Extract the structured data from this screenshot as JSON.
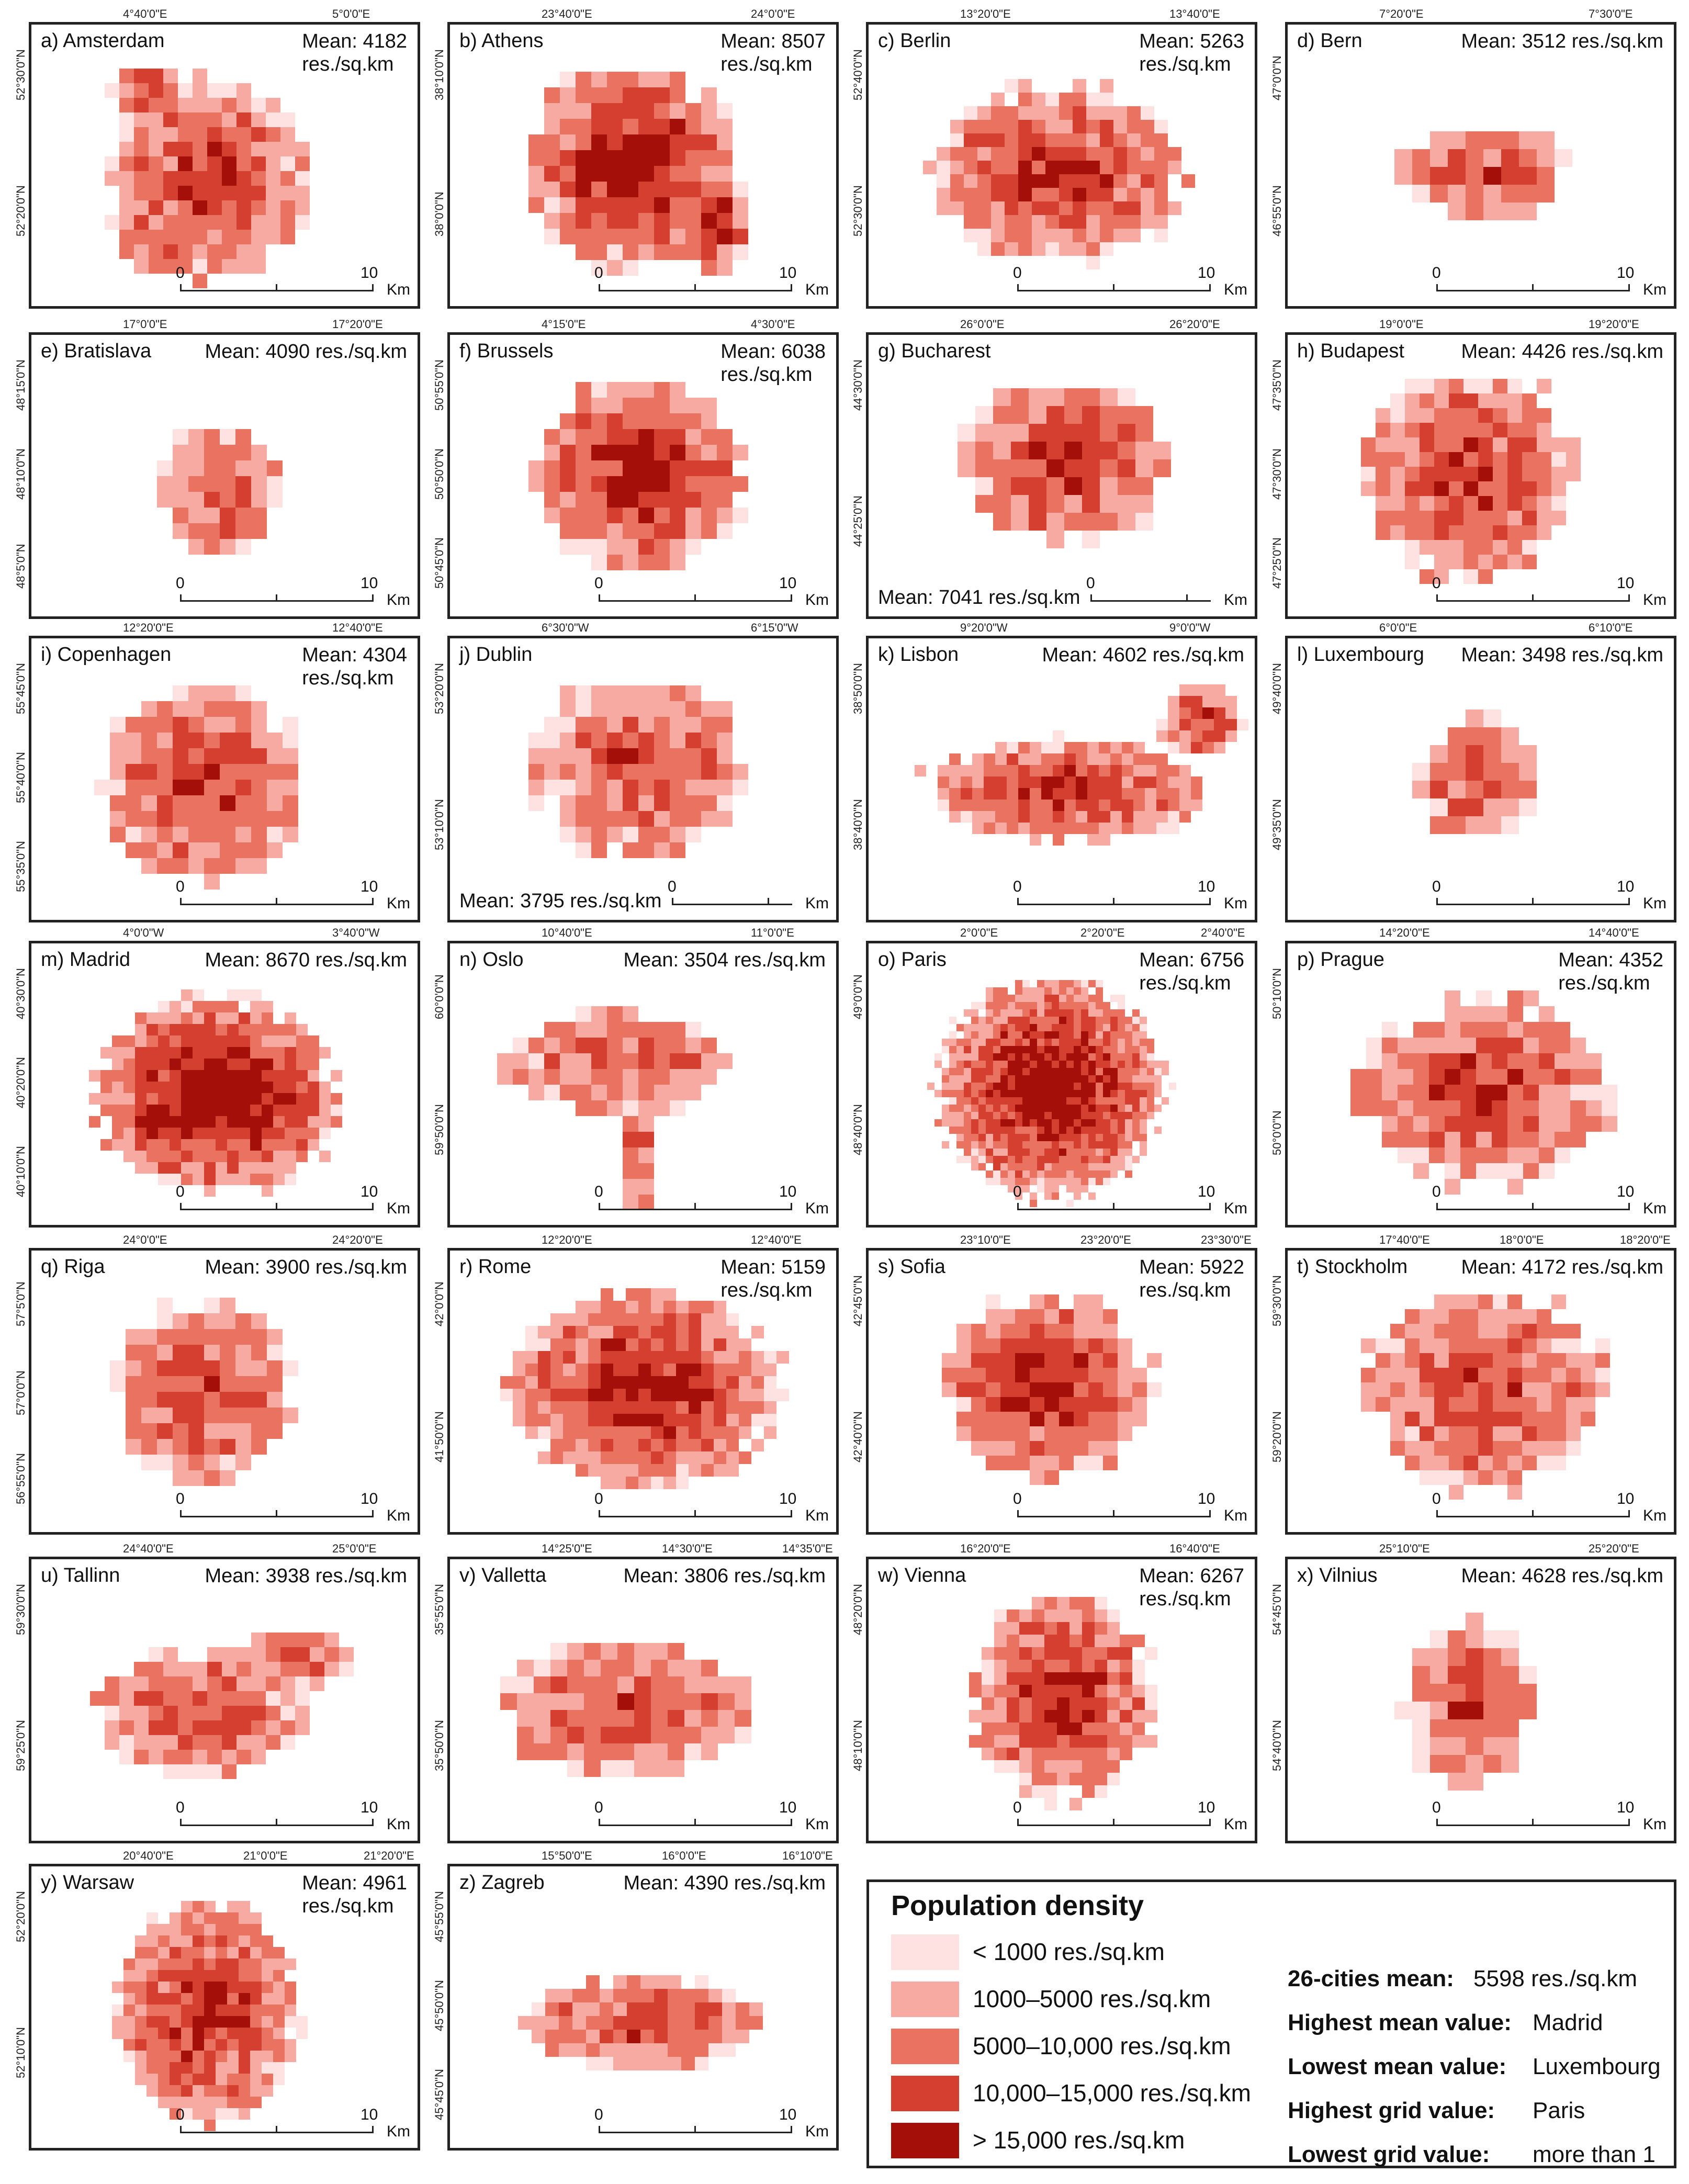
{
  "colors": {
    "c1": "#fde2e1",
    "c2": "#f7aaa2",
    "c3": "#ea7261",
    "c4": "#d43f30",
    "c5": "#a50f0a",
    "frame": "#222222"
  },
  "scale": {
    "zero": "0",
    "ten": "10",
    "unit": "Km"
  },
  "cities": [
    {
      "title": "a) Amsterdam",
      "mean": "Mean: 4182\nres./sq.km",
      "top": [
        "4°40'0\"E",
        "5°0'0\"E"
      ],
      "left": [
        "52°30'0\"N",
        "52°20'0\"N"
      ]
    },
    {
      "title": "b) Athens",
      "mean": "Mean: 8507\nres./sq.km",
      "top": [
        "23°40'0\"E",
        "24°0'0\"E"
      ],
      "left": [
        "38°10'0\"N",
        "38°0'0\"N"
      ]
    },
    {
      "title": "c) Berlin",
      "mean": "Mean: 5263\nres./sq.km",
      "top": [
        "13°20'0\"E",
        "13°40'0\"E"
      ],
      "left": [
        "52°40'0\"N",
        "52°30'0\"N"
      ]
    },
    {
      "title": "d) Bern",
      "mean": "Mean: 3512 res./sq.km",
      "top": [
        "7°20'0\"E",
        "7°30'0\"E"
      ],
      "left": [
        "47°0'0\"N",
        "46°55'0\"N"
      ]
    },
    {
      "title": "e) Bratislava",
      "mean": "Mean: 4090 res./sq.km",
      "top": [
        "17°0'0\"E",
        "17°20'0\"E"
      ],
      "left": [
        "48°15'0\"N",
        "48°10'0\"N",
        "48°5'0\"N"
      ]
    },
    {
      "title": "f) Brussels",
      "mean": "Mean: 6038\nres./sq.km",
      "top": [
        "4°15'0\"E",
        "4°30'0\"E"
      ],
      "left": [
        "50°55'0\"N",
        "50°50'0\"N",
        "50°45'0\"N"
      ]
    },
    {
      "title": "g) Bucharest",
      "mean": "Mean: 7041 res./sq.km",
      "top": [
        "26°0'0\"E",
        "26°20'0\"E"
      ],
      "left": [
        "44°30'0\"N",
        "44°25'0\"N"
      ]
    },
    {
      "title": "h) Budapest",
      "mean": "Mean: 4426 res./sq.km",
      "top": [
        "19°0'0\"E",
        "19°20'0\"E"
      ],
      "left": [
        "47°35'0\"N",
        "47°30'0\"N",
        "47°25'0\"N"
      ]
    },
    {
      "title": "i) Copenhagen",
      "mean": "Mean: 4304\nres./sq.km",
      "top": [
        "12°20'0\"E",
        "12°40'0\"E"
      ],
      "left": [
        "55°45'0\"N",
        "55°40'0\"N",
        "55°35'0\"N"
      ]
    },
    {
      "title": "j) Dublin",
      "mean": "Mean: 3795 res./sq.km",
      "top": [
        "6°30'0\"W",
        "6°15'0\"W"
      ],
      "left": [
        "53°20'0\"N",
        "53°10'0\"N"
      ]
    },
    {
      "title": "k) Lisbon",
      "mean": "Mean: 4602 res./sq.km",
      "top": [
        "9°20'0\"W",
        "9°0'0\"W"
      ],
      "left": [
        "38°50'0\"N",
        "38°40'0\"N"
      ]
    },
    {
      "title": "l) Luxembourg",
      "mean": "Mean: 3498 res./sq.km",
      "top": [
        "6°0'0\"E",
        "6°10'0\"E"
      ],
      "left": [
        "49°40'0\"N",
        "49°35'0\"N"
      ]
    },
    {
      "title": "m) Madrid",
      "mean": "Mean: 8670 res./sq.km",
      "top": [
        "4°0'0\"W",
        "3°40'0\"W"
      ],
      "left": [
        "40°30'0\"N",
        "40°20'0\"N",
        "40°10'0\"N"
      ]
    },
    {
      "title": "n) Oslo",
      "mean": "Mean: 3504 res./sq.km",
      "top": [
        "10°40'0\"E",
        "11°0'0\"E"
      ],
      "left": [
        "60°0'0\"N",
        "59°50'0\"N"
      ]
    },
    {
      "title": "o) Paris",
      "mean": "Mean: 6756\nres./sq.km",
      "top": [
        "2°0'0\"E",
        "2°20'0\"E",
        "2°40'0\"E"
      ],
      "left": [
        "49°0'0\"N",
        "48°40'0\"N"
      ]
    },
    {
      "title": "p) Prague",
      "mean": "Mean: 4352\nres./sq.km",
      "top": [
        "14°20'0\"E",
        "14°40'0\"E"
      ],
      "left": [
        "50°10'0\"N",
        "50°0'0\"N"
      ]
    },
    {
      "title": "q) Riga",
      "mean": "Mean: 3900 res./sq.km",
      "top": [
        "24°0'0\"E",
        "24°20'0\"E"
      ],
      "left": [
        "57°5'0\"N",
        "57°0'0\"N",
        "56°55'0\"N"
      ]
    },
    {
      "title": "r) Rome",
      "mean": "Mean: 5159\nres./sq.km",
      "top": [
        "12°20'0\"E",
        "12°40'0\"E"
      ],
      "left": [
        "42°0'0\"N",
        "41°50'0\"N"
      ]
    },
    {
      "title": "s) Sofia",
      "mean": "Mean: 5922\nres./sq.km",
      "top": [
        "23°10'0\"E",
        "23°20'0\"E",
        "23°30'0\"E"
      ],
      "left": [
        "42°45'0\"N",
        "42°40'0\"N"
      ]
    },
    {
      "title": "t) Stockholm",
      "mean": "Mean: 4172 res./sq.km",
      "top": [
        "17°40'0\"E",
        "18°0'0\"E",
        "18°20'0\"E"
      ],
      "left": [
        "59°30'0\"N",
        "59°20'0\"N"
      ]
    },
    {
      "title": "u) Tallinn",
      "mean": "Mean: 3938 res./sq.km",
      "top": [
        "24°40'0\"E",
        "25°0'0\"E"
      ],
      "left": [
        "59°30'0\"N",
        "59°25'0\"N"
      ]
    },
    {
      "title": "v) Valletta",
      "mean": "Mean: 3806 res./sq.km",
      "top": [
        "14°25'0\"E",
        "14°30'0\"E",
        "14°35'0\"E"
      ],
      "left": [
        "35°55'0\"N",
        "35°50'0\"N"
      ]
    },
    {
      "title": "w) Vienna",
      "mean": "Mean: 6267\nres./sq.km",
      "top": [
        "16°20'0\"E",
        "16°40'0\"E"
      ],
      "left": [
        "48°20'0\"N",
        "48°10'0\"N"
      ]
    },
    {
      "title": "x) Vilnius",
      "mean": "Mean: 4628 res./sq.km",
      "top": [
        "25°10'0\"E",
        "25°20'0\"E"
      ],
      "left": [
        "54°45'0\"N",
        "54°40'0\"N"
      ]
    },
    {
      "title": "y) Warsaw",
      "mean": "Mean: 4961\nres./sq.km",
      "top": [
        "20°40'0\"E",
        "21°0'0\"E",
        "21°20'0\"E"
      ],
      "left": [
        "52°20'0\"N",
        "52°10'0\"N"
      ]
    },
    {
      "title": "z) Zagreb",
      "mean": "Mean: 4390 res./sq.km",
      "top": [
        "15°50'0\"E",
        "16°0'0\"E",
        "16°10'0\"E"
      ],
      "left": [
        "45°55'0\"N",
        "45°50'0\"N",
        "45°45'0\"N"
      ]
    }
  ],
  "legend": {
    "title": "Population density",
    "classes": [
      "< 1000 res./sq.km",
      "1000–5000 res./sq.km",
      "5000–10,000 res./sq.km",
      "10,000–15,000 res./sq.km",
      "> 15,000 res./sq.km"
    ],
    "stats": [
      {
        "label": "26-cities mean:",
        "value": "5598 res./sq.km"
      },
      {
        "label": "Highest mean value:",
        "value": "Madrid"
      },
      {
        "label": "Lowest mean value:",
        "value": "Luxembourg"
      },
      {
        "label": "Highest grid value:",
        "value": "Paris"
      },
      {
        "label": "Lowest grid value:",
        "value": "more than 1"
      }
    ]
  }
}
